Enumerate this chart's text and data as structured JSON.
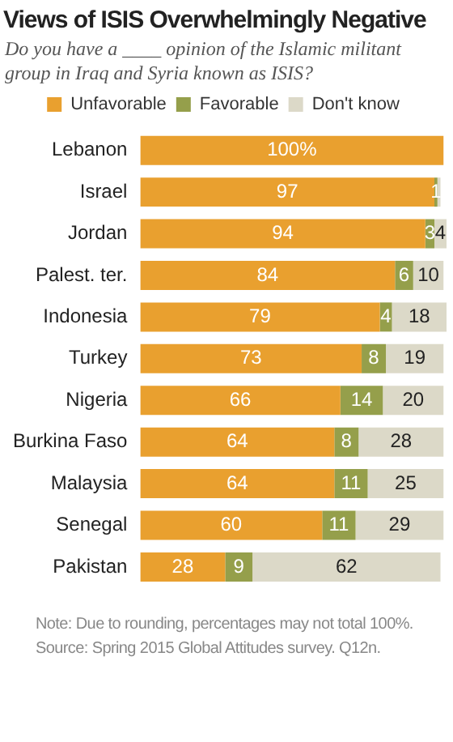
{
  "chart_data": {
    "type": "bar",
    "orientation": "horizontal",
    "stacked": true,
    "title": "Views of ISIS Overwhelmingly Negative",
    "subtitle": "Do you have a ____ opinion of the Islamic militant group in Iraq and Syria known as ISIS?",
    "categories": [
      "Lebanon",
      "Israel",
      "Jordan",
      "Palest. ter.",
      "Indonesia",
      "Turkey",
      "Nigeria",
      "Burkina Faso",
      "Malaysia",
      "Senegal",
      "Pakistan"
    ],
    "series": [
      {
        "name": "Unfavorable",
        "color": "#e9a02f",
        "values": [
          100,
          97,
          94,
          84,
          79,
          73,
          66,
          64,
          64,
          60,
          28
        ],
        "value_labels": [
          "100%",
          "97",
          "94",
          "84",
          "79",
          "73",
          "66",
          "64",
          "64",
          "60",
          "28"
        ]
      },
      {
        "name": "Favorable",
        "color": "#959f4b",
        "values": [
          0,
          1,
          3,
          6,
          4,
          8,
          14,
          8,
          11,
          11,
          9
        ],
        "value_labels": [
          null,
          "1",
          "3",
          "6",
          "4",
          "8",
          "14",
          "8",
          "11",
          "11",
          "9"
        ]
      },
      {
        "name": "Don't know",
        "color": "#dcd9c8",
        "values": [
          0,
          1,
          4,
          10,
          18,
          19,
          20,
          28,
          25,
          29,
          62
        ],
        "value_labels": [
          null,
          null,
          "4",
          "10",
          "18",
          "19",
          "20",
          "28",
          "25",
          "29",
          "62"
        ]
      }
    ],
    "legend": "top",
    "tick_labels": "y",
    "annotations": [
      "Note: Due to rounding, percentages may not total 100%.",
      "Source: Spring 2015 Global Attitudes survey. Q12n."
    ]
  }
}
